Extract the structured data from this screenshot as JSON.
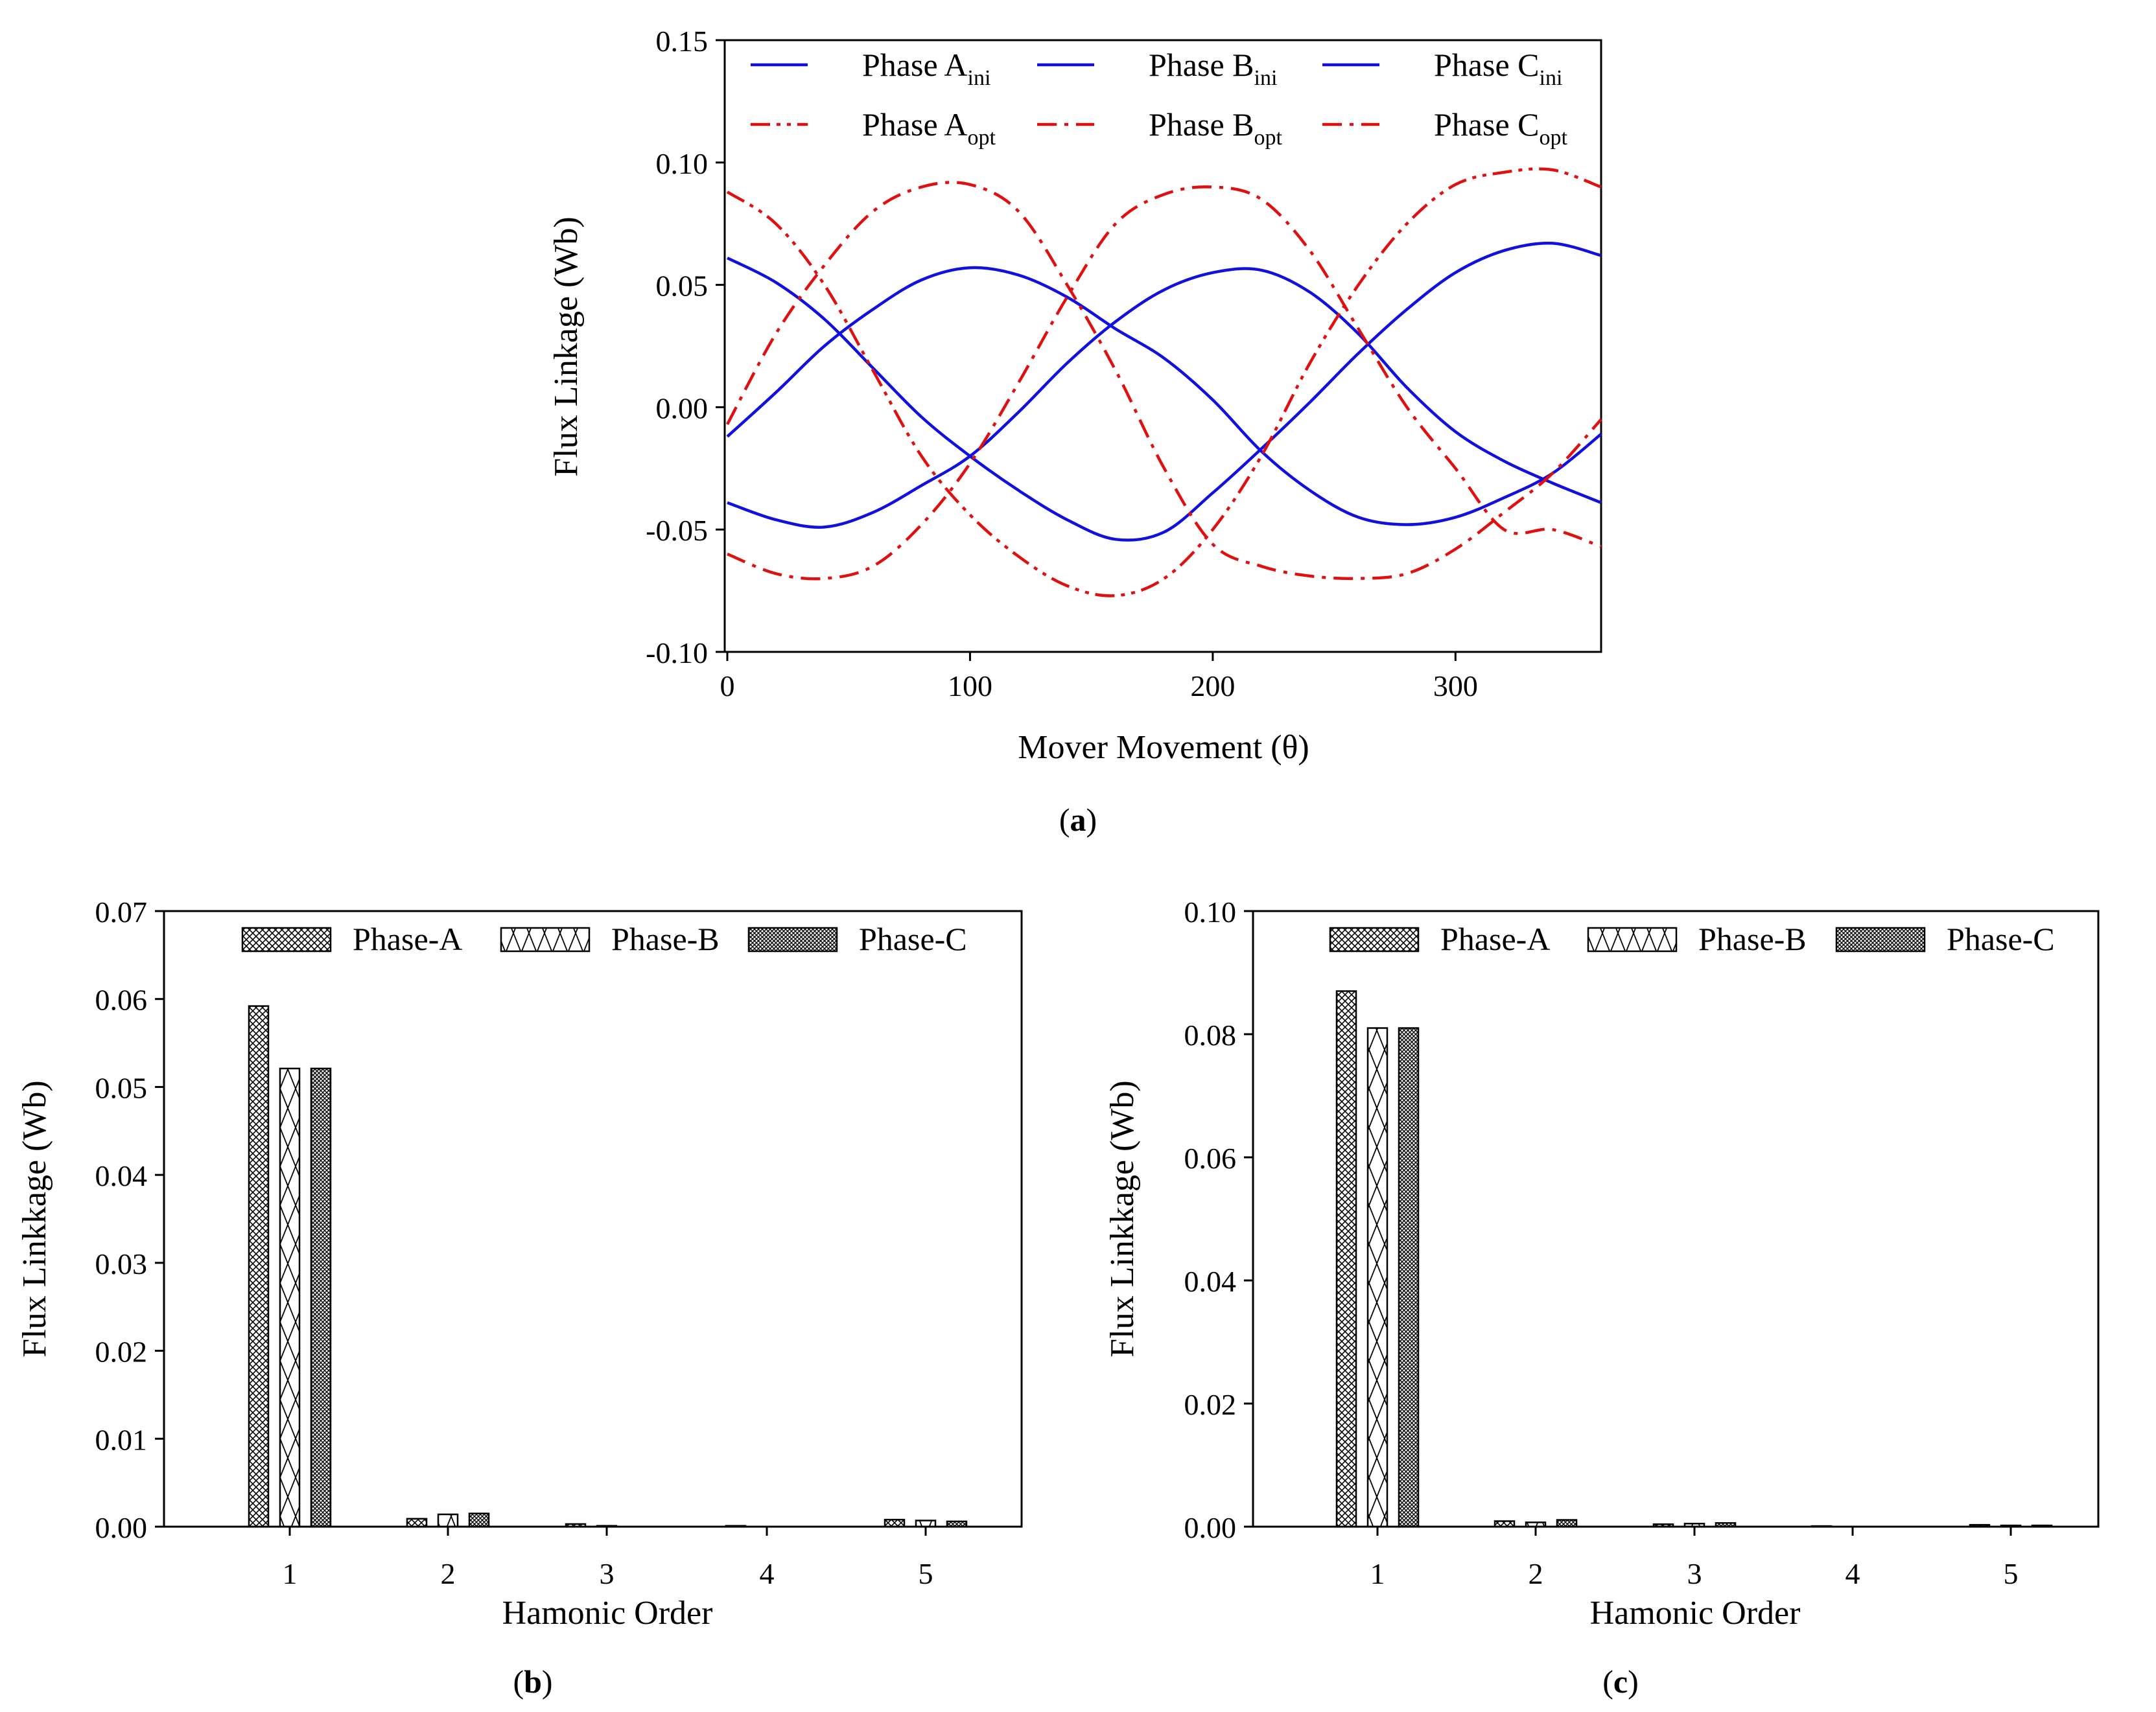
{
  "colors": {
    "ini": "#1010e0",
    "opt": "#e01010",
    "axis": "#000000",
    "bar_fill": "#ffffff"
  },
  "chart_data": [
    {
      "id": "a",
      "type": "line",
      "caption_letter": "a",
      "xlabel": "Mover Movement (θ)",
      "ylabel": "Flux Linkage (Wb)",
      "xlim": [
        0,
        360
      ],
      "ylim": [
        -0.1,
        0.15
      ],
      "x_ticks": [
        "0",
        "100",
        "200",
        "300"
      ],
      "x_tick_values": [
        0,
        100,
        200,
        300
      ],
      "y_ticks": [
        "-0.10",
        "-0.05",
        "0.00",
        "0.05",
        "0.10",
        "0.15"
      ],
      "y_tick_values": [
        -0.1,
        -0.05,
        0.0,
        0.05,
        0.1,
        0.15
      ],
      "legend": [
        {
          "base": "Phase A",
          "sub": "ini",
          "style": "solid",
          "color": "ini"
        },
        {
          "base": "Phase B",
          "sub": "ini",
          "style": "solid",
          "color": "ini"
        },
        {
          "base": "Phase C",
          "sub": "ini",
          "style": "solid",
          "color": "ini"
        },
        {
          "base": "Phase A",
          "sub": "opt",
          "style": "dashdotdot",
          "color": "opt"
        },
        {
          "base": "Phase B",
          "sub": "opt",
          "style": "dashdot",
          "color": "opt"
        },
        {
          "base": "Phase C",
          "sub": "opt",
          "style": "dashdot",
          "color": "opt"
        }
      ],
      "series": [
        {
          "name": "Phase A_ini",
          "color": "ini",
          "style": "solid",
          "x": [
            0,
            20,
            40,
            60,
            80,
            100,
            120,
            140,
            160,
            180,
            200,
            220,
            240,
            260,
            280,
            300,
            320,
            340,
            360
          ],
          "y": [
            0.061,
            0.051,
            0.036,
            0.016,
            -0.004,
            -0.02,
            -0.034,
            -0.046,
            -0.054,
            -0.051,
            -0.035,
            -0.017,
            0.002,
            0.022,
            0.04,
            0.055,
            0.064,
            0.067,
            0.062
          ]
        },
        {
          "name": "Phase B_ini",
          "color": "ini",
          "style": "solid",
          "x": [
            0,
            20,
            40,
            60,
            80,
            100,
            120,
            140,
            160,
            180,
            200,
            220,
            240,
            260,
            280,
            300,
            320,
            340,
            360
          ],
          "y": [
            -0.012,
            0.006,
            0.025,
            0.04,
            0.052,
            0.057,
            0.054,
            0.045,
            0.032,
            0.02,
            0.003,
            -0.018,
            -0.034,
            -0.045,
            -0.048,
            -0.045,
            -0.037,
            -0.027,
            -0.011
          ]
        },
        {
          "name": "Phase C_ini",
          "color": "ini",
          "style": "solid",
          "x": [
            0,
            20,
            40,
            60,
            80,
            100,
            120,
            140,
            160,
            180,
            200,
            220,
            240,
            260,
            280,
            300,
            320,
            340,
            360
          ],
          "y": [
            -0.039,
            -0.046,
            -0.049,
            -0.043,
            -0.032,
            -0.02,
            -0.002,
            0.018,
            0.035,
            0.048,
            0.055,
            0.056,
            0.047,
            0.03,
            0.008,
            -0.01,
            -0.022,
            -0.031,
            -0.039
          ]
        },
        {
          "name": "Phase A_opt",
          "color": "opt",
          "style": "dashdotdot",
          "x": [
            0,
            20,
            40,
            60,
            80,
            100,
            120,
            140,
            160,
            180,
            200,
            220,
            240,
            260,
            280,
            300,
            320,
            340,
            360
          ],
          "y": [
            0.088,
            0.075,
            0.05,
            0.015,
            -0.02,
            -0.044,
            -0.061,
            -0.073,
            -0.077,
            -0.07,
            -0.05,
            -0.02,
            0.018,
            0.05,
            0.075,
            0.091,
            0.096,
            0.097,
            0.09
          ]
        },
        {
          "name": "Phase B_opt",
          "color": "opt",
          "style": "dashdot",
          "x": [
            0,
            20,
            40,
            60,
            80,
            100,
            120,
            140,
            160,
            180,
            200,
            220,
            240,
            260,
            280,
            300,
            320,
            340,
            360
          ],
          "y": [
            -0.007,
            0.03,
            0.058,
            0.08,
            0.09,
            0.091,
            0.08,
            0.05,
            0.015,
            -0.025,
            -0.056,
            -0.065,
            -0.069,
            -0.07,
            -0.068,
            -0.058,
            -0.043,
            -0.027,
            -0.005
          ]
        },
        {
          "name": "Phase C_opt",
          "color": "opt",
          "style": "dashdot",
          "x": [
            0,
            20,
            40,
            60,
            80,
            100,
            120,
            140,
            160,
            180,
            200,
            220,
            240,
            260,
            280,
            300,
            320,
            340,
            360
          ],
          "y": [
            -0.06,
            -0.068,
            -0.07,
            -0.065,
            -0.048,
            -0.023,
            0.01,
            0.045,
            0.075,
            0.087,
            0.09,
            0.085,
            0.064,
            0.032,
            0.0,
            -0.025,
            -0.05,
            -0.05,
            -0.057
          ]
        }
      ]
    },
    {
      "id": "b",
      "type": "bar",
      "caption_letter": "b",
      "xlabel": "Hamonic Order",
      "ylabel": "Flux Linkkage (Wb)",
      "ylim": [
        0,
        0.07
      ],
      "categories": [
        "1",
        "2",
        "3",
        "4",
        "5"
      ],
      "y_ticks": [
        "0.00",
        "0.01",
        "0.02",
        "0.03",
        "0.04",
        "0.05",
        "0.06",
        "0.07"
      ],
      "y_tick_values": [
        0,
        0.01,
        0.02,
        0.03,
        0.04,
        0.05,
        0.06,
        0.07
      ],
      "series": [
        {
          "name": "Phase-A",
          "pattern": "A",
          "values": [
            0.0592,
            0.0009,
            0.0003,
            0.0001,
            0.0008
          ]
        },
        {
          "name": "Phase-B",
          "pattern": "B",
          "values": [
            0.0521,
            0.0014,
            0.0001,
            0.0,
            0.0007
          ]
        },
        {
          "name": "Phase-C",
          "pattern": "C",
          "values": [
            0.0521,
            0.0015,
            0.0,
            0.0,
            0.0006
          ]
        }
      ]
    },
    {
      "id": "c",
      "type": "bar",
      "caption_letter": "c",
      "xlabel": "Hamonic Order",
      "ylabel": "Flux Linkkage (Wb)",
      "ylim": [
        0,
        0.1
      ],
      "categories": [
        "1",
        "2",
        "3",
        "4",
        "5"
      ],
      "y_ticks": [
        "0.00",
        "0.02",
        "0.04",
        "0.06",
        "0.08",
        "0.10"
      ],
      "y_tick_values": [
        0,
        0.02,
        0.04,
        0.06,
        0.08,
        0.1
      ],
      "series": [
        {
          "name": "Phase-A",
          "pattern": "A",
          "values": [
            0.087,
            0.0009,
            0.0004,
            0.0001,
            0.0003
          ]
        },
        {
          "name": "Phase-B",
          "pattern": "B",
          "values": [
            0.081,
            0.0007,
            0.0005,
            0.0,
            0.0002
          ]
        },
        {
          "name": "Phase-C",
          "pattern": "C",
          "values": [
            0.081,
            0.0011,
            0.0006,
            0.0,
            0.0002
          ]
        }
      ]
    }
  ]
}
